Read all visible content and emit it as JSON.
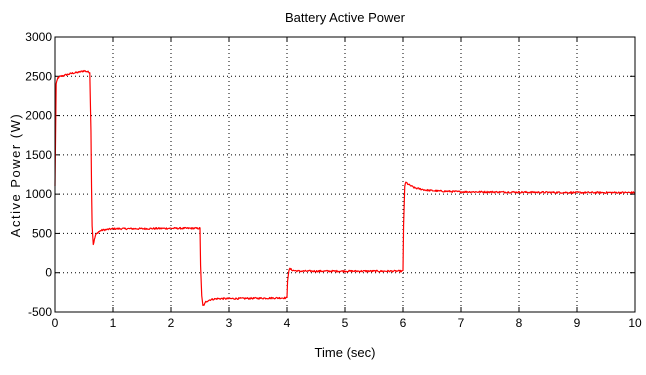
{
  "chart_data": {
    "type": "line",
    "title": "Battery Active Power",
    "xlabel": "Time (sec)",
    "ylabel": "Active Power (W)",
    "xlim": [
      0,
      10
    ],
    "ylim": [
      -500,
      3000
    ],
    "xticks": [
      0,
      1,
      2,
      3,
      4,
      5,
      6,
      7,
      8,
      9,
      10
    ],
    "yticks": [
      -500,
      0,
      500,
      1000,
      1500,
      2000,
      2500,
      3000
    ],
    "grid": true,
    "series": [
      {
        "color": "#ff0000",
        "x": [
          0.0,
          0.02,
          0.05,
          0.1,
          0.2,
          0.3,
          0.4,
          0.5,
          0.6,
          0.62,
          0.63,
          0.64,
          0.66,
          0.68,
          0.7,
          0.75,
          0.8,
          0.9,
          1.0,
          1.5,
          2.0,
          2.5,
          2.51,
          2.53,
          2.55,
          2.58,
          2.6,
          2.65,
          2.7,
          2.8,
          3.0,
          3.5,
          4.0,
          4.01,
          4.03,
          4.05,
          4.1,
          4.2,
          4.5,
          5.0,
          5.5,
          6.0,
          6.01,
          6.03,
          6.05,
          6.1,
          6.2,
          6.4,
          6.6,
          7.0,
          8.0,
          9.0,
          10.0
        ],
        "y": [
          1100,
          2400,
          2480,
          2500,
          2520,
          2540,
          2550,
          2570,
          2550,
          1800,
          1100,
          600,
          360,
          420,
          480,
          520,
          540,
          550,
          560,
          560,
          565,
          565,
          100,
          -300,
          -420,
          -400,
          -370,
          -350,
          -340,
          -330,
          -330,
          -325,
          -320,
          -100,
          20,
          50,
          30,
          20,
          20,
          20,
          20,
          20,
          600,
          1100,
          1150,
          1120,
          1080,
          1050,
          1040,
          1030,
          1025,
          1020,
          1020
        ]
      }
    ]
  }
}
